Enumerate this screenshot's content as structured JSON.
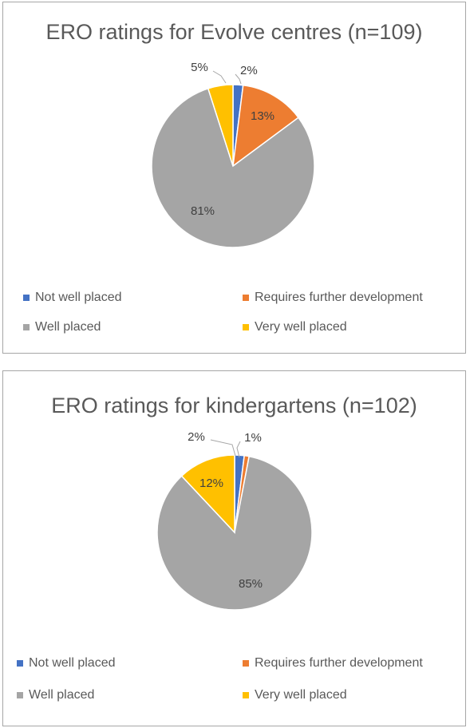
{
  "chart_data": [
    {
      "type": "pie",
      "title": "ERO ratings for Evolve centres (n=109)",
      "slices": [
        {
          "label": "Not well placed",
          "value": 2,
          "data_label": "2%",
          "color": "#4472c4"
        },
        {
          "label": "Requires further development",
          "value": 13,
          "data_label": "13%",
          "color": "#ed7d31"
        },
        {
          "label": "Well placed",
          "value": 81,
          "data_label": "81%",
          "color": "#a5a5a5"
        },
        {
          "label": "Very well placed",
          "value": 5,
          "data_label": "5%",
          "color": "#ffc000"
        }
      ],
      "legend_placement": "bottom"
    },
    {
      "type": "pie",
      "title": "ERO ratings for kindergartens (n=102)",
      "slices": [
        {
          "label": "Not well placed",
          "value": 2,
          "data_label": "2%",
          "color": "#4472c4"
        },
        {
          "label": "Requires further development",
          "value": 1,
          "data_label": "1%",
          "color": "#ed7d31"
        },
        {
          "label": "Well placed",
          "value": 85,
          "data_label": "85%",
          "color": "#a5a5a5"
        },
        {
          "label": "Very well placed",
          "value": 12,
          "data_label": "12%",
          "color": "#ffc000"
        }
      ],
      "legend_placement": "bottom"
    }
  ]
}
